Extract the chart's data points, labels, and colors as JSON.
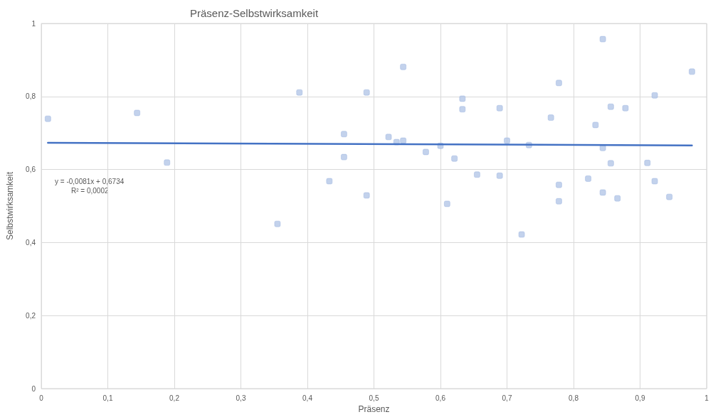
{
  "chart_data": {
    "type": "scatter",
    "title": "Präsenz-Selbstwirksamkeit",
    "xlabel": "Präsenz",
    "ylabel": "Selbstwirksamkeit",
    "annotations": [
      "y = -0,0081x + 0,6734",
      "R² = 0,0002"
    ],
    "xlim": [
      0,
      1
    ],
    "ylim": [
      0,
      1
    ],
    "xticks": [
      0,
      {
        "value": 0.1,
        "label": "0,1"
      },
      {
        "value": 0.2,
        "label": "0,2"
      },
      {
        "value": 0.3,
        "label": "0,3"
      },
      {
        "value": 0.4,
        "label": "0,4"
      },
      {
        "value": 0.5,
        "label": "0,5"
      },
      {
        "value": 0.6,
        "label": "0,6"
      },
      {
        "value": 0.7,
        "label": "0,7"
      },
      {
        "value": 0.8,
        "label": "0,8"
      },
      {
        "value": 0.9,
        "label": "0,9"
      },
      1
    ],
    "yticks": [
      0,
      {
        "value": 0.2,
        "label": "0,2"
      },
      {
        "value": 0.4,
        "label": "0,4"
      },
      {
        "value": 0.6,
        "label": "0,6"
      },
      {
        "value": 0.8,
        "label": "0,8"
      },
      1
    ],
    "grid": true,
    "marker": "square",
    "series": [
      {
        "color": "#b4c7e7",
        "x": [
          0.01,
          0.144,
          0.189,
          0.355,
          0.388,
          0.455,
          0.455,
          0.433,
          0.489,
          0.489,
          0.544,
          0.522,
          0.534,
          0.544,
          0.578,
          0.6,
          0.621,
          0.61,
          0.633,
          0.633,
          0.655,
          0.689,
          0.689,
          0.7,
          0.722,
          0.733,
          0.766,
          0.778,
          0.778,
          0.778,
          0.822,
          0.833,
          0.844,
          0.844,
          0.844,
          0.856,
          0.856,
          0.866,
          0.878,
          0.911,
          0.922,
          0.922,
          0.944,
          0.978
        ],
        "values": [
          0.739,
          0.755,
          0.619,
          0.451,
          0.811,
          0.697,
          0.634,
          0.568,
          0.811,
          0.529,
          0.881,
          0.689,
          0.675,
          0.679,
          0.648,
          0.665,
          0.63,
          0.506,
          0.794,
          0.765,
          0.586,
          0.768,
          0.583,
          0.679,
          0.422,
          0.667,
          0.742,
          0.837,
          0.558,
          0.513,
          0.575,
          0.722,
          0.957,
          0.659,
          0.537,
          0.772,
          0.617,
          0.521,
          0.768,
          0.618,
          0.803,
          0.568,
          0.525,
          0.868
        ]
      },
      {
        "type": "line",
        "color": "#4472c4",
        "marker": "none",
        "line_style": "solid",
        "x": [
          0.01,
          0.978
        ],
        "values": [
          0.673,
          0.666
        ]
      }
    ]
  }
}
